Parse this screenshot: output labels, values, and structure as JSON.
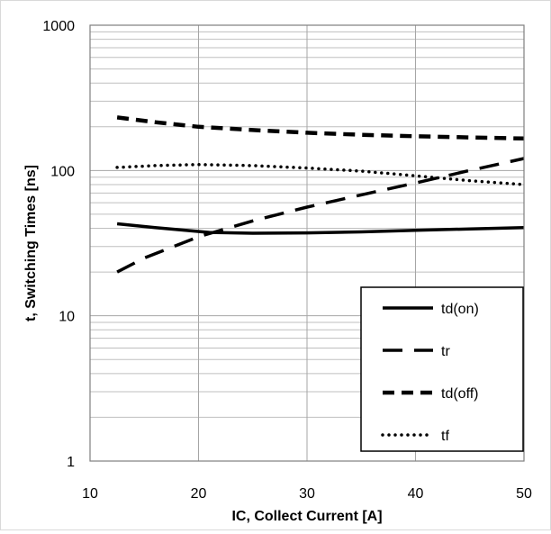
{
  "chart_data": {
    "type": "line",
    "title": "",
    "xlabel": "IC, Collect Current [A]",
    "ylabel": "t, Switching Times [ns]",
    "xlim": [
      10,
      50
    ],
    "ylim": [
      1,
      1000
    ],
    "yscale": "log",
    "grid": true,
    "legend_position": "bottom-right",
    "x_ticks": [
      "10",
      "20",
      "30",
      "40",
      "50"
    ],
    "y_ticks": [
      "1",
      "10",
      "100",
      "1000"
    ],
    "series": [
      {
        "name": "td(on)",
        "style": "solid",
        "points": [
          [
            12.5,
            43
          ],
          [
            16,
            40.5
          ],
          [
            21,
            37.5
          ],
          [
            25,
            37
          ],
          [
            30,
            37.2
          ],
          [
            35,
            37.8
          ],
          [
            40,
            38.7
          ],
          [
            45,
            39.6
          ],
          [
            50,
            40.5
          ]
        ]
      },
      {
        "name": "tr",
        "style": "long-dash",
        "points": [
          [
            12.5,
            20
          ],
          [
            15,
            25
          ],
          [
            20,
            35
          ],
          [
            25,
            45
          ],
          [
            30,
            56
          ],
          [
            35,
            68
          ],
          [
            40,
            82
          ],
          [
            45,
            100
          ],
          [
            50,
            121
          ]
        ]
      },
      {
        "name": "td(off)",
        "style": "dash",
        "points": [
          [
            12.5,
            232
          ],
          [
            16,
            215
          ],
          [
            20,
            200
          ],
          [
            25,
            190
          ],
          [
            30,
            182
          ],
          [
            35,
            176
          ],
          [
            40,
            172
          ],
          [
            45,
            169
          ],
          [
            50,
            166
          ]
        ]
      },
      {
        "name": "tf",
        "style": "dotted",
        "points": [
          [
            12.5,
            105
          ],
          [
            16,
            108
          ],
          [
            20,
            110
          ],
          [
            25,
            108
          ],
          [
            30,
            104
          ],
          [
            35,
            99
          ],
          [
            40,
            92
          ],
          [
            45,
            85
          ],
          [
            50,
            80
          ]
        ]
      }
    ]
  }
}
